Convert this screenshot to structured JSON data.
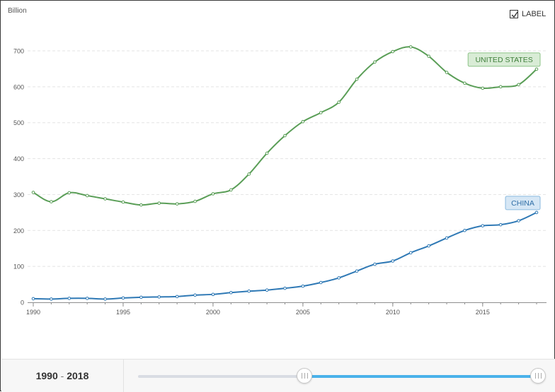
{
  "chart_data": {
    "type": "line",
    "ylabel": "Billion",
    "ylim": [
      0,
      700
    ],
    "yticks": [
      0,
      100,
      200,
      300,
      400,
      500,
      600,
      700
    ],
    "xlim": [
      1990,
      2019
    ],
    "xticks": [
      1990,
      1995,
      2000,
      2005,
      2010,
      2015
    ],
    "grid": true,
    "x": [
      1990,
      1991,
      1992,
      1993,
      1994,
      1995,
      1996,
      1997,
      1998,
      1999,
      2000,
      2001,
      2002,
      2003,
      2004,
      2005,
      2006,
      2007,
      2008,
      2009,
      2010,
      2011,
      2012,
      2013,
      2014,
      2015,
      2016,
      2017,
      2018
    ],
    "series": [
      {
        "name": "UNITED STATES",
        "color": "#5a9e57",
        "label_fill": "#d9ecd6",
        "label_stroke": "#8cc387",
        "label_text_color": "#3f7f3b",
        "values": [
          306,
          280,
          305,
          297,
          288,
          279,
          271,
          276,
          274,
          281,
          302,
          313,
          357,
          415,
          464,
          503,
          528,
          557,
          621,
          669,
          698,
          711,
          685,
          640,
          610,
          596,
          600,
          606,
          649
        ]
      },
      {
        "name": "CHINA",
        "color": "#2f79b5",
        "label_fill": "#d6e7f5",
        "label_stroke": "#8bbadf",
        "label_text_color": "#2f6ea6",
        "values": [
          10,
          9,
          11,
          11,
          9,
          12,
          14,
          15,
          16,
          20,
          22,
          27,
          31,
          34,
          39,
          45,
          55,
          68,
          87,
          106,
          115,
          138,
          157,
          179,
          200,
          213,
          216,
          227,
          250
        ]
      }
    ]
  },
  "controls": {
    "label_toggle": {
      "text": "LABEL",
      "checked": true
    },
    "range": {
      "start": "1990",
      "end": "2018",
      "separator": "-",
      "min_year": 1970,
      "max_year": 2018
    },
    "accent_color": "#4ab2ea"
  }
}
